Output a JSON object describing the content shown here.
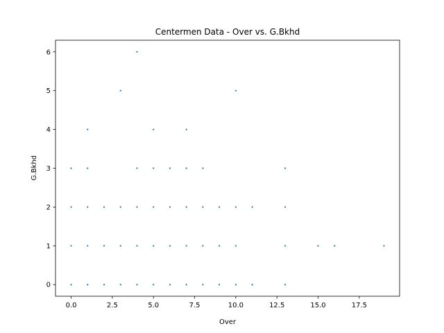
{
  "chart_data": {
    "type": "scatter",
    "title": "Centermen Data - Over vs. G.Bkhd",
    "xlabel": "Over",
    "ylabel": "G.Bkhd",
    "xlim": [
      -0.95,
      19.95
    ],
    "ylim": [
      -0.3,
      6.3
    ],
    "xticks": [
      0.0,
      2.5,
      5.0,
      7.5,
      10.0,
      12.5,
      15.0,
      17.5
    ],
    "xtick_labels": [
      "0.0",
      "2.5",
      "5.0",
      "7.5",
      "10.0",
      "12.5",
      "15.0",
      "17.5"
    ],
    "yticks": [
      0,
      1,
      2,
      3,
      4,
      5,
      6
    ],
    "ytick_labels": [
      "0",
      "1",
      "2",
      "3",
      "4",
      "5",
      "6"
    ],
    "grid": false,
    "marker_color": "#1f77b4",
    "points": [
      [
        0,
        0
      ],
      [
        1,
        0
      ],
      [
        2,
        0
      ],
      [
        3,
        0
      ],
      [
        4,
        0
      ],
      [
        5,
        0
      ],
      [
        6,
        0
      ],
      [
        7,
        0
      ],
      [
        8,
        0
      ],
      [
        9,
        0
      ],
      [
        10,
        0
      ],
      [
        11,
        0
      ],
      [
        13,
        0
      ],
      [
        0,
        1
      ],
      [
        1,
        1
      ],
      [
        2,
        1
      ],
      [
        3,
        1
      ],
      [
        4,
        1
      ],
      [
        5,
        1
      ],
      [
        6,
        1
      ],
      [
        7,
        1
      ],
      [
        8,
        1
      ],
      [
        9,
        1
      ],
      [
        10,
        1
      ],
      [
        13,
        1
      ],
      [
        15,
        1
      ],
      [
        16,
        1
      ],
      [
        19,
        1
      ],
      [
        0,
        2
      ],
      [
        1,
        2
      ],
      [
        2,
        2
      ],
      [
        3,
        2
      ],
      [
        4,
        2
      ],
      [
        5,
        2
      ],
      [
        6,
        2
      ],
      [
        7,
        2
      ],
      [
        8,
        2
      ],
      [
        9,
        2
      ],
      [
        10,
        2
      ],
      [
        11,
        2
      ],
      [
        13,
        2
      ],
      [
        0,
        3
      ],
      [
        1,
        3
      ],
      [
        4,
        3
      ],
      [
        5,
        3
      ],
      [
        6,
        3
      ],
      [
        7,
        3
      ],
      [
        8,
        3
      ],
      [
        13,
        3
      ],
      [
        1,
        4
      ],
      [
        5,
        4
      ],
      [
        7,
        4
      ],
      [
        3,
        5
      ],
      [
        10,
        5
      ],
      [
        4,
        6
      ]
    ]
  }
}
